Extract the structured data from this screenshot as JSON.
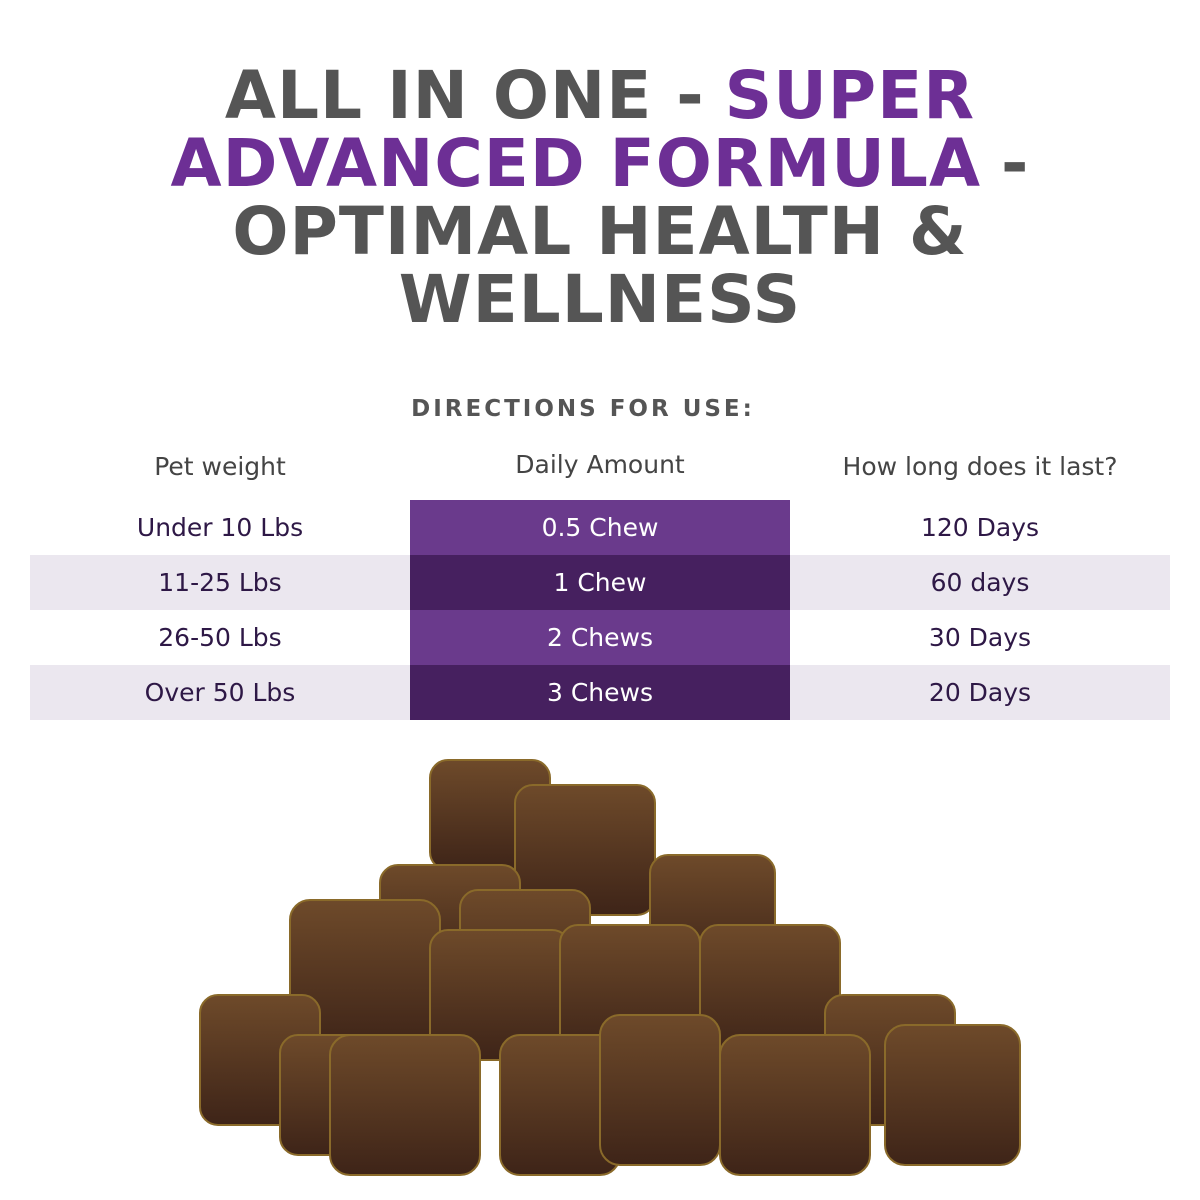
{
  "title": {
    "lines": [
      [
        "ALL IN ONE  -",
        "SUPER"
      ],
      [
        "ADVANCED FORMULA",
        "-"
      ],
      [
        "OPTIMAL HEALTH &"
      ],
      [
        "WELLNESS"
      ]
    ]
  },
  "directions": {
    "heading": "DIRECTIONS FOR USE:",
    "columns": [
      "Pet weight",
      "Daily Amount",
      "How long does it last?"
    ],
    "rows": [
      [
        "Under 10 Lbs",
        "0.5 Chew",
        "120 Days"
      ],
      [
        "11-25 Lbs",
        "1 Chew",
        "60 days"
      ],
      [
        "26-50 Lbs",
        "2 Chews",
        "30 Days"
      ],
      [
        "Over 50 Lbs",
        "3 Chews",
        "20 Days"
      ]
    ]
  }
}
